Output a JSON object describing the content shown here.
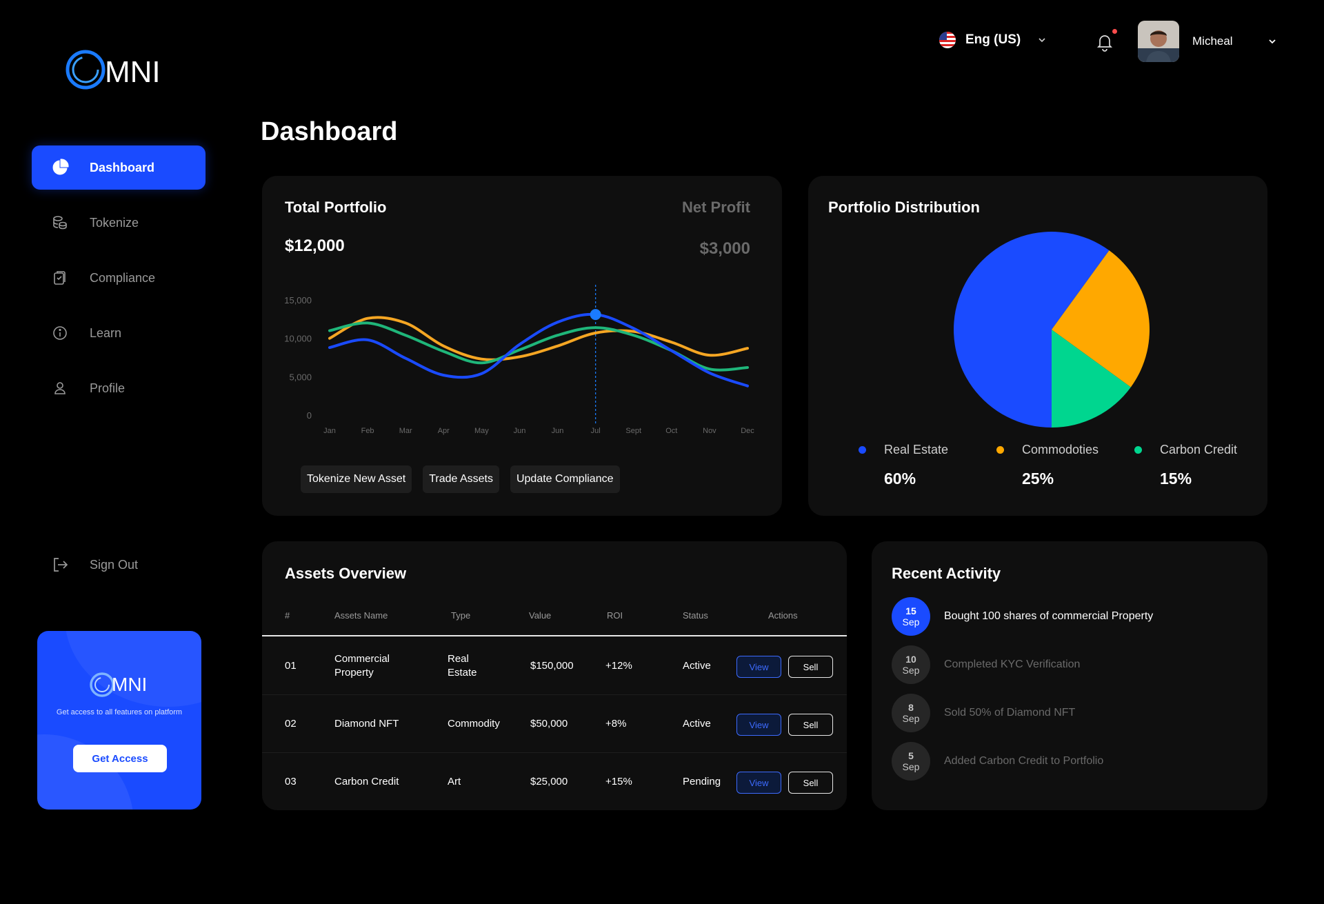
{
  "brand": {
    "logo_text": "MNI"
  },
  "sidebar": {
    "items": [
      {
        "label": "Dashboard",
        "icon": "pie-chart-icon",
        "active": true
      },
      {
        "label": "Tokenize",
        "icon": "coins-icon"
      },
      {
        "label": "Compliance",
        "icon": "clipboard-icon"
      },
      {
        "label": "Learn",
        "icon": "info-icon"
      },
      {
        "label": "Profile",
        "icon": "user-icon"
      }
    ],
    "signout_label": "Sign Out"
  },
  "promo": {
    "logo_text": "MNI",
    "description": "Get access to all features on platform",
    "button_label": "Get Access"
  },
  "header": {
    "language": "Eng (US)",
    "user_name": "Micheal"
  },
  "page_title": "Dashboard",
  "portfolio": {
    "title": "Total Portfolio",
    "value": "$12,000",
    "net_profit_title": "Net Profit",
    "net_profit_value": "$3,000",
    "buttons": [
      "Tokenize New Asset",
      "Trade Assets",
      "Update Compliance"
    ]
  },
  "chart_data": {
    "type": "line",
    "categories": [
      "Jan",
      "Feb",
      "Mar",
      "Apr",
      "May",
      "Jun",
      "Jun",
      "Jul",
      "Sept",
      "Oct",
      "Nov",
      "Dec"
    ],
    "y_ticks": [
      "15,000",
      "10,000",
      "5,000",
      "0"
    ],
    "ylim": [
      0,
      15000
    ],
    "highlight_category_index": 7,
    "series": [
      {
        "color": "#f5a623",
        "values": [
          10000,
          12600,
          12000,
          9000,
          7300,
          7600,
          9000,
          10700,
          10900,
          9500,
          7800,
          8700
        ]
      },
      {
        "color": "#1fb67a",
        "values": [
          11000,
          12000,
          10400,
          8300,
          6800,
          8500,
          10400,
          11400,
          10400,
          8400,
          6000,
          6200
        ]
      },
      {
        "color": "#1a4bff",
        "values": [
          8800,
          9800,
          7400,
          5200,
          5400,
          9200,
          12100,
          13100,
          11300,
          8400,
          5500,
          3800
        ]
      }
    ]
  },
  "distribution": {
    "title": "Portfolio Distribution",
    "legend": [
      {
        "label": "Real Estate",
        "pct": "60%",
        "value": 60,
        "color": "#1a4bff"
      },
      {
        "label": "Commodoties",
        "pct": "25%",
        "value": 25,
        "color": "#ffa800"
      },
      {
        "label": "Carbon Credit",
        "pct": "15%",
        "value": 15,
        "color": "#00d68f"
      }
    ]
  },
  "assets": {
    "title": "Assets Overview",
    "columns": [
      "#",
      "Assets Name",
      "Type",
      "Value",
      "ROI",
      "Status",
      "Actions"
    ],
    "view_label": "View",
    "sell_label": "Sell",
    "rows": [
      {
        "id": "01",
        "name": "Commercial Property",
        "type": "Real Estate",
        "value": "$150,000",
        "roi": "+12%",
        "status": "Active"
      },
      {
        "id": "02",
        "name": "Diamond NFT",
        "type": "Commodity",
        "value": "$50,000",
        "roi": "+8%",
        "status": "Active"
      },
      {
        "id": "03",
        "name": "Carbon Credit",
        "type": "Art",
        "value": "$25,000",
        "roi": "+15%",
        "status": "Pending"
      }
    ]
  },
  "activity": {
    "title": "Recent Activity",
    "items": [
      {
        "day": "15",
        "month": "Sep",
        "text": "Bought 100 shares of commercial Property",
        "active": true
      },
      {
        "day": "10",
        "month": "Sep",
        "text": "Completed KYC Verification"
      },
      {
        "day": "8",
        "month": "Sep",
        "text": "Sold 50% of Diamond NFT"
      },
      {
        "day": "5",
        "month": "Sep",
        "text": "Added Carbon Credit to Portfolio"
      }
    ]
  }
}
